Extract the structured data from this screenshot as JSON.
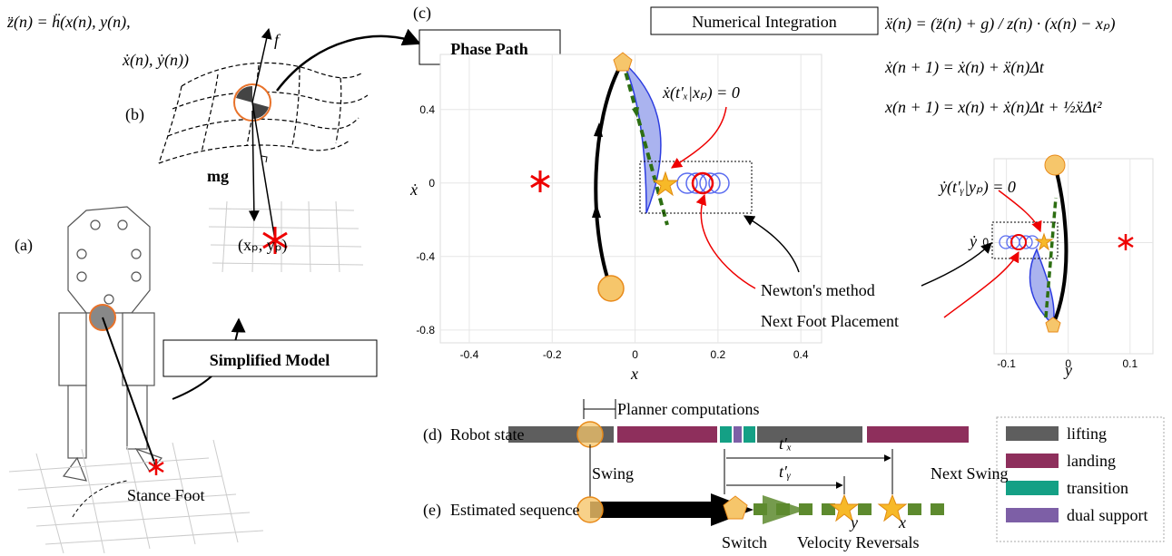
{
  "panels": {
    "a": "(a)",
    "b": "(b)",
    "c": "(c)",
    "d": "(d)",
    "e": "(e)"
  },
  "model": {
    "equation_line1": "z̈(n) = ḧ(x(n), y(n),",
    "equation_line2": "ẋ(n), ẏ(n))",
    "force": "f",
    "weight": "mg",
    "foot_point": "(xₚ, yₚ)",
    "simplified_model": "Simplified Model",
    "stance_foot": "Stance Foot"
  },
  "phase_path": "Phase Path",
  "numerical_integration": {
    "title": "Numerical Integration",
    "equations": [
      "ẍ(n) = (z̈(n) + g) / z(n) · (x(n) − xₚ)",
      "ẋ(n + 1) = ẋ(n) + ẍ(n)Δt",
      "x(n + 1) = x(n) + ẋ(n)Δt + ½ẍΔt²"
    ]
  },
  "phase_plot": {
    "x_label": "x",
    "y_label": "ẋ",
    "xlim": [
      -0.47,
      0.45
    ],
    "ylim": [
      -0.87,
      0.7
    ],
    "xticks": [
      -0.4,
      -0.2,
      0,
      0.2,
      0.4
    ],
    "yticks": [
      -0.8,
      -0.4,
      0,
      0.4
    ],
    "condition": "ẋ(t′ₓ|xₚ) = 0",
    "newton_label": "Newton's method",
    "placement_label": "Next Foot Placement"
  },
  "lateral_plot": {
    "x_label": "y",
    "y_label": "ẏ",
    "xlim": [
      -0.12,
      0.137
    ],
    "ylim": [
      -0.57,
      0.43
    ],
    "xticks": [
      -0.1,
      0,
      0.1
    ],
    "yticks": [
      0
    ],
    "condition": "ẏ(t′ᵧ|yₚ) = 0"
  },
  "timeline": {
    "planner": "Planner computations",
    "robot_state": "Robot state",
    "estimated_sequence": "Estimated sequence",
    "swing": "Swing",
    "next_swing": "Next Swing",
    "switch": "Switch",
    "velocity_reversals": "Velocity Reversals",
    "t_x": "t′ₓ",
    "t_y": "t′ᵧ",
    "sub_y": "y",
    "sub_x": "x"
  },
  "legend": [
    {
      "name": "lifting",
      "color": "#5e5e5e"
    },
    {
      "name": "landing",
      "color": "#8e2f5c"
    },
    {
      "name": "transition",
      "color": "#14a085"
    },
    {
      "name": "dual support",
      "color": "#7d5fa6"
    }
  ]
}
